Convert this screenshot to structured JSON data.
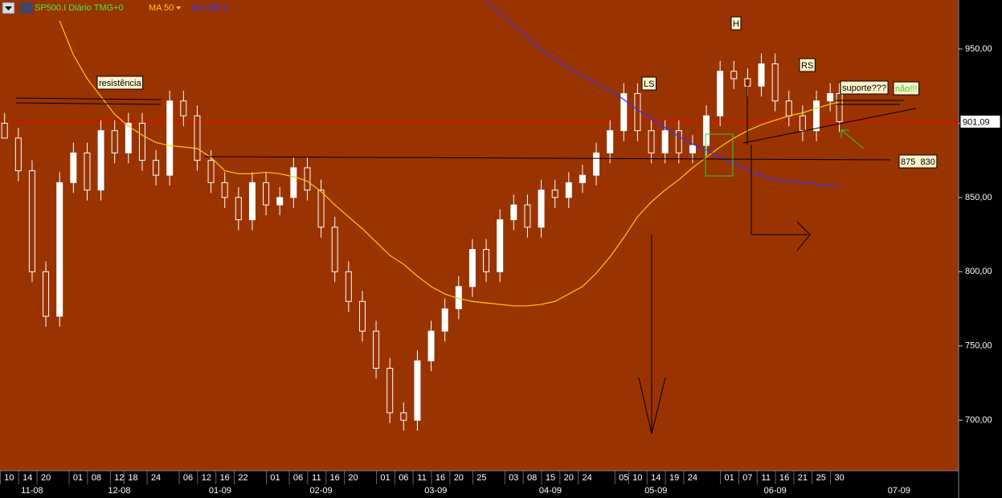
{
  "chart_data": {
    "type": "candlestick",
    "title": "SP500.I Diário TMG+0",
    "title_color": "#44ee44",
    "x": [
      0,
      3,
      6,
      9,
      12,
      15,
      18,
      21,
      24,
      27,
      30,
      33,
      36,
      39,
      42,
      45,
      48,
      51,
      54,
      57,
      60,
      63,
      66,
      69,
      72,
      75,
      78,
      81,
      84,
      87,
      90,
      93,
      96,
      99,
      102,
      105,
      108,
      111,
      114,
      117,
      120,
      123,
      126,
      129,
      132,
      135,
      138,
      141,
      144,
      147,
      150,
      153,
      156,
      159,
      162,
      165,
      168,
      171,
      174,
      177,
      180,
      182
    ],
    "open": [
      900,
      890,
      868,
      800,
      770,
      860,
      880,
      855,
      895,
      880,
      900,
      875,
      865,
      915,
      905,
      875,
      860,
      850,
      835,
      860,
      845,
      850,
      870,
      855,
      830,
      800,
      780,
      760,
      735,
      705,
      700,
      740,
      760,
      775,
      790,
      815,
      800,
      835,
      845,
      830,
      855,
      850,
      860,
      865,
      880,
      895,
      920,
      895,
      880,
      895,
      880,
      885,
      905,
      935,
      930,
      925,
      940,
      915,
      905,
      895,
      915,
      920
    ],
    "high": [
      907,
      897,
      875,
      807,
      867,
      887,
      887,
      902,
      902,
      907,
      907,
      882,
      922,
      922,
      912,
      882,
      867,
      857,
      867,
      867,
      857,
      877,
      877,
      862,
      837,
      807,
      787,
      767,
      742,
      712,
      747,
      767,
      782,
      797,
      822,
      822,
      842,
      852,
      852,
      862,
      862,
      867,
      872,
      887,
      902,
      927,
      927,
      902,
      902,
      902,
      892,
      912,
      942,
      942,
      937,
      947,
      947,
      922,
      912,
      922,
      927,
      927
    ],
    "low": [
      893,
      861,
      793,
      763,
      763,
      853,
      848,
      848,
      873,
      873,
      868,
      858,
      858,
      898,
      868,
      853,
      843,
      828,
      828,
      838,
      838,
      843,
      848,
      823,
      793,
      773,
      753,
      728,
      698,
      693,
      693,
      733,
      753,
      768,
      783,
      793,
      793,
      828,
      823,
      823,
      843,
      843,
      853,
      858,
      873,
      888,
      888,
      873,
      873,
      873,
      873,
      878,
      898,
      923,
      918,
      918,
      908,
      898,
      888,
      888,
      908,
      894
    ],
    "close": [
      890,
      868,
      800,
      770,
      860,
      880,
      855,
      895,
      880,
      900,
      875,
      865,
      915,
      905,
      875,
      860,
      850,
      835,
      860,
      845,
      850,
      870,
      855,
      830,
      800,
      780,
      760,
      735,
      705,
      700,
      740,
      760,
      775,
      790,
      815,
      800,
      835,
      845,
      830,
      855,
      850,
      860,
      865,
      880,
      895,
      920,
      895,
      880,
      895,
      880,
      885,
      905,
      935,
      930,
      925,
      940,
      915,
      905,
      895,
      915,
      920,
      901.09
    ],
    "series": [
      {
        "name": "MA 50",
        "color": "#ffcc00",
        "values": [
          null,
          null,
          null,
          null,
          969,
          946,
          930,
          918,
          906,
          898,
          892,
          887,
          885,
          884,
          883,
          877,
          868,
          866,
          866,
          867,
          866,
          864,
          861,
          854,
          845,
          837,
          829,
          820,
          811,
          805,
          797,
          790,
          785,
          782,
          780,
          779,
          778,
          777,
          777,
          778,
          780,
          785,
          790,
          799,
          810,
          823,
          837,
          847,
          855,
          862,
          870,
          877,
          884,
          890,
          895,
          899,
          902,
          905,
          907,
          910,
          913,
          914
        ]
      },
      {
        "name": "MA 200",
        "color": "#3333ff",
        "values": [
          null,
          null,
          null,
          null,
          null,
          null,
          null,
          null,
          null,
          null,
          null,
          null,
          null,
          null,
          null,
          null,
          null,
          null,
          null,
          null,
          null,
          null,
          null,
          null,
          null,
          null,
          null,
          null,
          null,
          null,
          null,
          null,
          null,
          null,
          null,
          982,
          974,
          966,
          958,
          950,
          943,
          937,
          932,
          927,
          922,
          916,
          909,
          903,
          897,
          891,
          886,
          882,
          877,
          873,
          868,
          865,
          862,
          861,
          860,
          859,
          858,
          858
        ]
      }
    ],
    "last_price": {
      "value": 901.09,
      "label": "901,09"
    },
    "xlim": [
      -1,
      208
    ],
    "ylim": [
      666,
      983
    ],
    "yticks": [
      {
        "value": 950,
        "label": "950,00"
      },
      {
        "value": 900,
        "label": "900,00"
      },
      {
        "value": 850,
        "label": "850,00"
      },
      {
        "value": 800,
        "label": "800,00"
      },
      {
        "value": 750,
        "label": "750,00"
      },
      {
        "value": 700,
        "label": "700,00"
      }
    ],
    "xticks": [
      {
        "value": 1,
        "label": "10"
      },
      {
        "value": 5,
        "label": "14"
      },
      {
        "value": 9,
        "label": "20"
      },
      {
        "value": 16,
        "label": "01"
      },
      {
        "value": 20,
        "label": "08"
      },
      {
        "value": 25,
        "label": "12"
      },
      {
        "value": 28,
        "label": "18"
      },
      {
        "value": 33,
        "label": "24"
      },
      {
        "value": 40,
        "label": "06"
      },
      {
        "value": 44,
        "label": "12"
      },
      {
        "value": 48,
        "label": "16"
      },
      {
        "value": 52,
        "label": "22"
      },
      {
        "value": 59,
        "label": "01"
      },
      {
        "value": 64,
        "label": "06"
      },
      {
        "value": 68,
        "label": "11"
      },
      {
        "value": 72,
        "label": "16"
      },
      {
        "value": 76,
        "label": "20"
      },
      {
        "value": 83,
        "label": "01"
      },
      {
        "value": 87,
        "label": "06"
      },
      {
        "value": 91,
        "label": "11"
      },
      {
        "value": 95,
        "label": "16"
      },
      {
        "value": 99,
        "label": "20"
      },
      {
        "value": 104,
        "label": "25"
      },
      {
        "value": 111,
        "label": "03"
      },
      {
        "value": 115,
        "label": "08"
      },
      {
        "value": 119,
        "label": "15"
      },
      {
        "value": 123,
        "label": "20"
      },
      {
        "value": 127,
        "label": "24"
      },
      {
        "value": 135,
        "label": "05"
      },
      {
        "value": 138,
        "label": "10"
      },
      {
        "value": 142,
        "label": "14"
      },
      {
        "value": 146,
        "label": "19"
      },
      {
        "value": 150,
        "label": "24"
      },
      {
        "value": 158,
        "label": "01"
      },
      {
        "value": 162,
        "label": "07"
      },
      {
        "value": 166,
        "label": "11"
      },
      {
        "value": 170,
        "label": "16"
      },
      {
        "value": 174,
        "label": "21"
      },
      {
        "value": 178,
        "label": "25"
      },
      {
        "value": 182,
        "label": "30"
      }
    ],
    "month_ticks": [
      {
        "value": 6,
        "label": "11-08"
      },
      {
        "value": 25,
        "label": "12-08"
      },
      {
        "value": 47,
        "label": "01-09"
      },
      {
        "value": 69,
        "label": "02-09"
      },
      {
        "value": 94,
        "label": "03-09"
      },
      {
        "value": 119,
        "label": "04-09"
      },
      {
        "value": 142,
        "label": "05-09"
      },
      {
        "value": 168,
        "label": "06-09"
      },
      {
        "value": 195,
        "label": "07-09"
      }
    ],
    "annotations": [
      "resistência",
      "LS",
      "H",
      "RS",
      "suporte???",
      "não!!!",
      "875  830"
    ]
  }
}
